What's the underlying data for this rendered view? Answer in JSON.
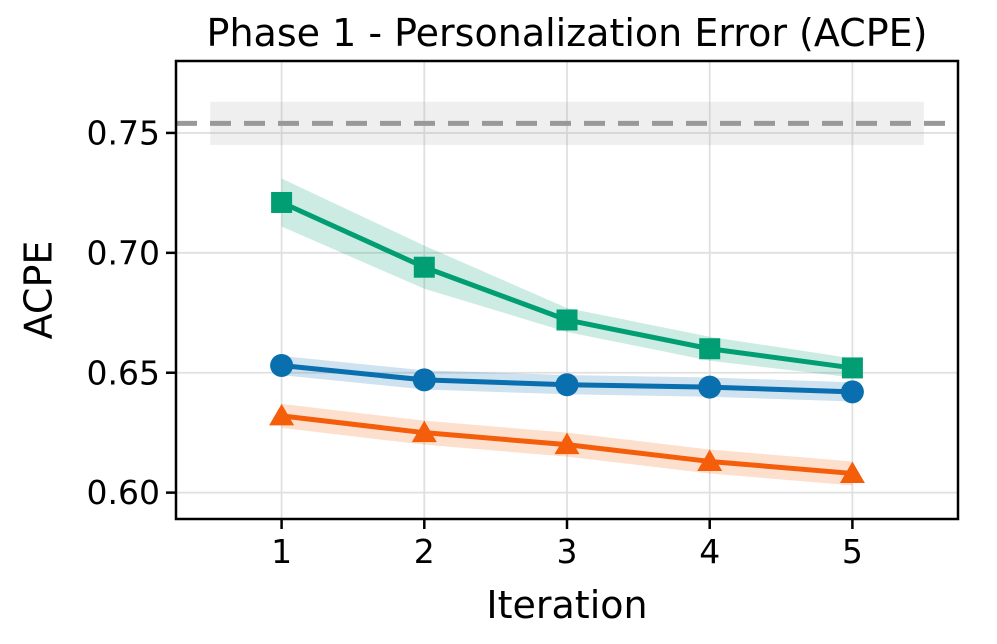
{
  "chart_data": {
    "type": "line",
    "title": "Phase 1 - Personalization Error (ACPE)",
    "xlabel": "Iteration",
    "ylabel": "ACPE",
    "x": [
      1,
      2,
      3,
      4,
      5
    ],
    "xticks": [
      1,
      2,
      3,
      4,
      5
    ],
    "xtick_labels": [
      "1",
      "2",
      "3",
      "4",
      "5"
    ],
    "yticks": [
      0.6,
      0.65,
      0.7,
      0.75
    ],
    "ytick_labels": [
      "0.60",
      "0.65",
      "0.70",
      "0.75"
    ],
    "xlim": [
      0.26,
      5.74
    ],
    "ylim": [
      0.589,
      0.78
    ],
    "grid": true,
    "legend": "none",
    "baseline": {
      "value": 0.754,
      "band": [
        0.745,
        0.763
      ],
      "band_x_range": [
        0.5,
        5.5
      ],
      "style": "dashed",
      "color": "#999999",
      "band_fill": "#999999",
      "band_opacity": 0.16
    },
    "series": [
      {
        "name": "green-square-series",
        "marker": "square",
        "color": "#029e73",
        "values": [
          0.721,
          0.694,
          0.672,
          0.66,
          0.652
        ],
        "band_halfwidth": [
          0.01,
          0.009,
          0.005,
          0.005,
          0.004
        ],
        "band_opacity": 0.2
      },
      {
        "name": "blue-circle-series",
        "marker": "circle",
        "color": "#0a6fae",
        "values": [
          0.653,
          0.647,
          0.645,
          0.644,
          0.642
        ],
        "band_halfwidth": [
          0.004,
          0.004,
          0.004,
          0.004,
          0.004
        ],
        "band_opacity": 0.2
      },
      {
        "name": "orange-triangle-series",
        "marker": "triangle",
        "color": "#f45d0a",
        "values": [
          0.632,
          0.625,
          0.62,
          0.613,
          0.608
        ],
        "band_halfwidth": [
          0.005,
          0.005,
          0.005,
          0.005,
          0.005
        ],
        "band_opacity": 0.2
      }
    ],
    "colors": {
      "grid": "#e0e0e0",
      "spine": "#000000",
      "background": "#ffffff",
      "text": "#000000"
    }
  }
}
